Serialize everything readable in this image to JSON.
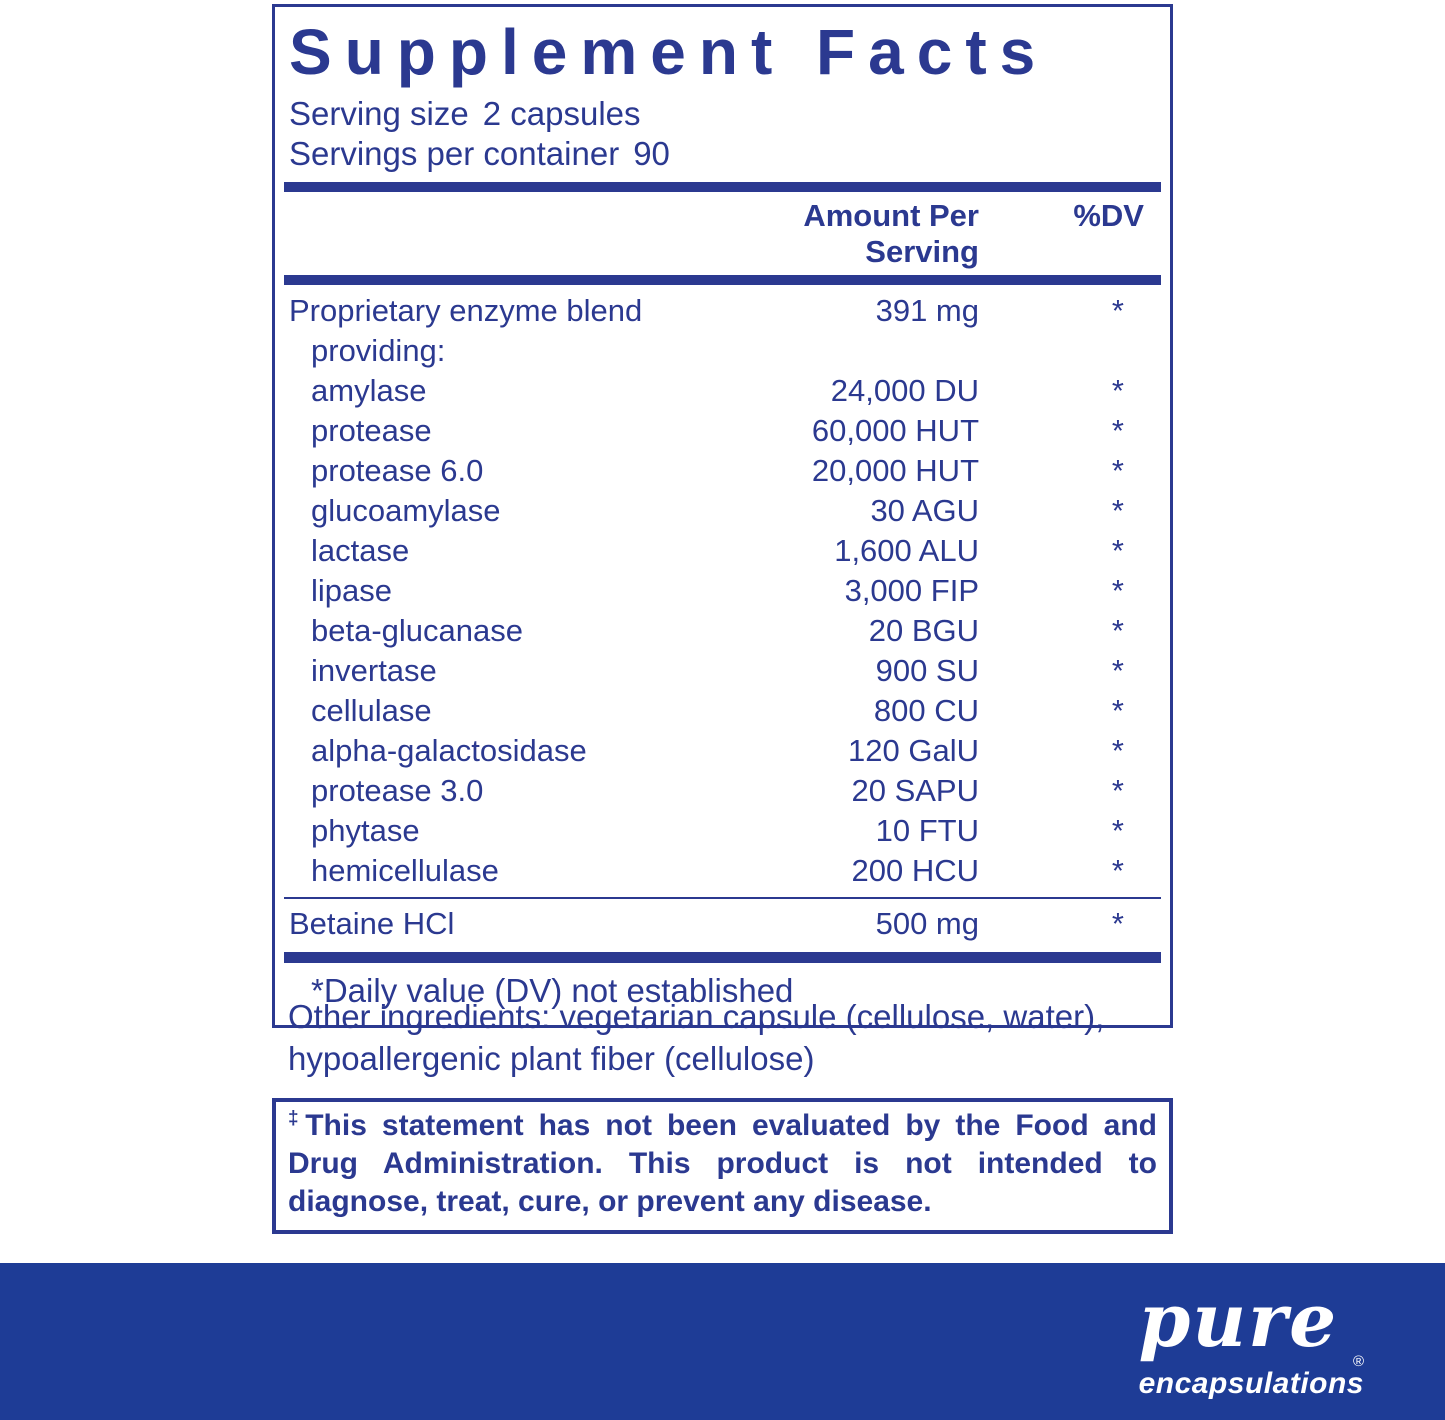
{
  "colors": {
    "navy_text": "#2B3990",
    "footer_blue": "#1E3C96",
    "background": "#ffffff"
  },
  "panel": {
    "title": "Supplement Facts",
    "serving_size_label": "Serving size",
    "serving_size_value": "2 capsules",
    "servings_per_container_label": "Servings per container",
    "servings_per_container_value": "90",
    "columns": {
      "amount": "Amount Per Serving",
      "dv": "%DV"
    },
    "rows": [
      {
        "name": "Proprietary enzyme blend",
        "amount": "391 mg",
        "dv": "*"
      },
      {
        "name": "providing:",
        "amount": "",
        "dv": ""
      },
      {
        "name": "amylase",
        "amount": "24,000 DU",
        "dv": "*"
      },
      {
        "name": "protease",
        "amount": "60,000 HUT",
        "dv": "*"
      },
      {
        "name": "protease 6.0",
        "amount": "20,000 HUT",
        "dv": "*"
      },
      {
        "name": "glucoamylase",
        "amount": "30 AGU",
        "dv": "*"
      },
      {
        "name": "lactase",
        "amount": "1,600 ALU",
        "dv": "*"
      },
      {
        "name": "lipase",
        "amount": "3,000 FIP",
        "dv": "*"
      },
      {
        "name": "beta-glucanase",
        "amount": "20 BGU",
        "dv": "*"
      },
      {
        "name": "invertase",
        "amount": "900 SU",
        "dv": "*"
      },
      {
        "name": "cellulase",
        "amount": "800 CU",
        "dv": "*"
      },
      {
        "name": "alpha-galactosidase",
        "amount": "120 GalU",
        "dv": "*"
      },
      {
        "name": "protease 3.0",
        "amount": "20 SAPU",
        "dv": "*"
      },
      {
        "name": "phytase",
        "amount": "10 FTU",
        "dv": "*"
      },
      {
        "name": "hemicellulase",
        "amount": "200 HCU",
        "dv": "*"
      }
    ],
    "betaine_row": {
      "name": "Betaine HCl",
      "amount": "500 mg",
      "dv": "*"
    },
    "footnote": "*Daily value (DV) not established"
  },
  "other_ingredients": {
    "line1": "Other ingredients: vegetarian capsule (cellulose, water),",
    "line2": "hypoallergenic plant fiber (cellulose)"
  },
  "disclaimer": {
    "dagger": "‡",
    "line1": "This statement has not been evaluated by the Food and",
    "line2": "Drug Administration. This product is not intended to",
    "line3": "diagnose, treat, cure, or prevent any disease."
  },
  "brand": {
    "name": "pure",
    "subname": "encapsulations",
    "registered_mark": "®"
  }
}
